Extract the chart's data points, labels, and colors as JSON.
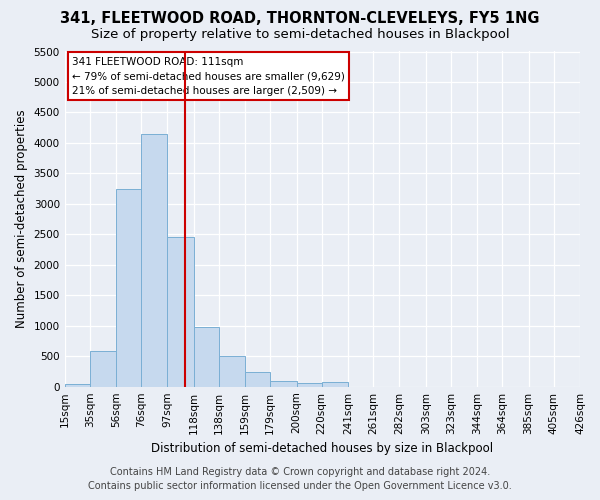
{
  "title": "341, FLEETWOOD ROAD, THORNTON-CLEVELEYS, FY5 1NG",
  "subtitle": "Size of property relative to semi-detached houses in Blackpool",
  "xlabel": "Distribution of semi-detached houses by size in Blackpool",
  "ylabel": "Number of semi-detached properties",
  "annotation_line1": "341 FLEETWOOD ROAD: 111sqm",
  "annotation_line2": "← 79% of semi-detached houses are smaller (9,629)",
  "annotation_line3": "21% of semi-detached houses are larger (2,509) →",
  "footer1": "Contains HM Land Registry data © Crown copyright and database right 2024.",
  "footer2": "Contains public sector information licensed under the Open Government Licence v3.0.",
  "property_size": 111,
  "bin_edges": [
    15,
    35,
    56,
    76,
    97,
    118,
    138,
    159,
    179,
    200,
    220,
    241,
    261,
    282,
    303,
    323,
    344,
    364,
    385,
    405,
    426
  ],
  "bar_heights": [
    50,
    580,
    3250,
    4150,
    2450,
    980,
    500,
    240,
    100,
    60,
    70,
    0,
    0,
    0,
    0,
    0,
    0,
    0,
    0,
    0
  ],
  "bar_color": "#c6d9ee",
  "bar_edge_color": "#7aafd4",
  "vline_color": "#cc0000",
  "vline_x": 111,
  "ylim": [
    0,
    5500
  ],
  "yticks": [
    0,
    500,
    1000,
    1500,
    2000,
    2500,
    3000,
    3500,
    4000,
    4500,
    5000,
    5500
  ],
  "bg_color": "#eaeef5",
  "plot_bg_color": "#eaeef5",
  "grid_color": "#ffffff",
  "title_fontsize": 10.5,
  "subtitle_fontsize": 9.5,
  "axis_label_fontsize": 8.5,
  "tick_fontsize": 7.5,
  "footer_fontsize": 7,
  "annotation_fontsize": 7.5
}
